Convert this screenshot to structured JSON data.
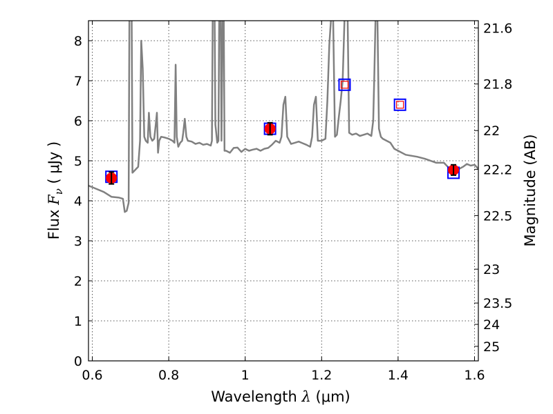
{
  "chart_data": {
    "type": "scatter",
    "xlabel_prefix": "Wavelength",
    "xlabel_symbol": "λ",
    "xlabel_unit": "(μm)",
    "ylabel_prefix": "Flux",
    "ylabel_symbol": "F",
    "ylabel_subscript": "ν",
    "ylabel_unit": "( μJy )",
    "y2label": "Magnitude (AB)",
    "xlim": [
      0.59,
      1.61
    ],
    "ylim": [
      0,
      8.5
    ],
    "grid": true,
    "x_ticks": [
      {
        "value": 0.6,
        "label": "0.6"
      },
      {
        "value": 0.8,
        "label": "0.8"
      },
      {
        "value": 1.0,
        "label": "1"
      },
      {
        "value": 1.2,
        "label": "1.2"
      },
      {
        "value": 1.4,
        "label": "1.4"
      },
      {
        "value": 1.6,
        "label": "1.6"
      }
    ],
    "y_ticks": [
      {
        "value": 0,
        "label": "0"
      },
      {
        "value": 1,
        "label": "1"
      },
      {
        "value": 2,
        "label": "2"
      },
      {
        "value": 3,
        "label": "3"
      },
      {
        "value": 4,
        "label": "4"
      },
      {
        "value": 5,
        "label": "5"
      },
      {
        "value": 6,
        "label": "6"
      },
      {
        "value": 7,
        "label": "7"
      },
      {
        "value": 8,
        "label": "8"
      }
    ],
    "y2_ticks": [
      {
        "value": 21.6,
        "label": "21.6"
      },
      {
        "value": 21.8,
        "label": "21.8"
      },
      {
        "value": 22.0,
        "label": "22"
      },
      {
        "value": 22.2,
        "label": "22.2"
      },
      {
        "value": 22.5,
        "label": "22.5"
      },
      {
        "value": 23.0,
        "label": "23"
      },
      {
        "value": 23.5,
        "label": "23.5"
      },
      {
        "value": 24.0,
        "label": "24"
      },
      {
        "value": 25.0,
        "label": "25"
      }
    ],
    "series": [
      {
        "kind": "line",
        "color": "#808080",
        "points": [
          [
            0.59,
            4.38
          ],
          [
            0.61,
            4.3
          ],
          [
            0.63,
            4.22
          ],
          [
            0.65,
            4.1
          ],
          [
            0.67,
            4.08
          ],
          [
            0.68,
            4.05
          ],
          [
            0.685,
            3.72
          ],
          [
            0.69,
            3.75
          ],
          [
            0.695,
            3.95
          ],
          [
            0.697,
            8.6
          ],
          [
            0.703,
            8.6
          ],
          [
            0.705,
            4.7
          ],
          [
            0.71,
            4.75
          ],
          [
            0.715,
            4.8
          ],
          [
            0.72,
            4.85
          ],
          [
            0.725,
            5.5
          ],
          [
            0.728,
            8.0
          ],
          [
            0.732,
            7.3
          ],
          [
            0.736,
            5.6
          ],
          [
            0.74,
            5.5
          ],
          [
            0.745,
            5.45
          ],
          [
            0.748,
            6.2
          ],
          [
            0.752,
            5.6
          ],
          [
            0.757,
            5.5
          ],
          [
            0.762,
            5.55
          ],
          [
            0.766,
            5.9
          ],
          [
            0.769,
            6.2
          ],
          [
            0.772,
            5.2
          ],
          [
            0.775,
            5.5
          ],
          [
            0.78,
            5.6
          ],
          [
            0.79,
            5.58
          ],
          [
            0.8,
            5.55
          ],
          [
            0.81,
            5.5
          ],
          [
            0.815,
            5.45
          ],
          [
            0.818,
            7.4
          ],
          [
            0.821,
            5.6
          ],
          [
            0.825,
            5.35
          ],
          [
            0.83,
            5.45
          ],
          [
            0.835,
            5.5
          ],
          [
            0.838,
            5.7
          ],
          [
            0.842,
            6.05
          ],
          [
            0.846,
            5.6
          ],
          [
            0.85,
            5.5
          ],
          [
            0.86,
            5.48
          ],
          [
            0.87,
            5.42
          ],
          [
            0.88,
            5.45
          ],
          [
            0.89,
            5.4
          ],
          [
            0.9,
            5.42
          ],
          [
            0.91,
            5.38
          ],
          [
            0.913,
            5.5
          ],
          [
            0.915,
            8.6
          ],
          [
            0.92,
            8.6
          ],
          [
            0.922,
            5.9
          ],
          [
            0.927,
            5.45
          ],
          [
            0.93,
            5.5
          ],
          [
            0.932,
            8.6
          ],
          [
            0.936,
            8.6
          ],
          [
            0.938,
            5.5
          ],
          [
            0.941,
            8.6
          ],
          [
            0.944,
            8.6
          ],
          [
            0.946,
            5.25
          ],
          [
            0.95,
            5.25
          ],
          [
            0.96,
            5.2
          ],
          [
            0.97,
            5.32
          ],
          [
            0.98,
            5.33
          ],
          [
            0.99,
            5.22
          ],
          [
            1.0,
            5.3
          ],
          [
            1.01,
            5.25
          ],
          [
            1.02,
            5.28
          ],
          [
            1.03,
            5.3
          ],
          [
            1.04,
            5.25
          ],
          [
            1.05,
            5.3
          ],
          [
            1.06,
            5.32
          ],
          [
            1.07,
            5.4
          ],
          [
            1.08,
            5.5
          ],
          [
            1.09,
            5.45
          ],
          [
            1.095,
            5.6
          ],
          [
            1.1,
            6.4
          ],
          [
            1.105,
            6.6
          ],
          [
            1.11,
            5.6
          ],
          [
            1.12,
            5.42
          ],
          [
            1.13,
            5.45
          ],
          [
            1.14,
            5.48
          ],
          [
            1.15,
            5.44
          ],
          [
            1.16,
            5.4
          ],
          [
            1.17,
            5.35
          ],
          [
            1.175,
            5.6
          ],
          [
            1.18,
            6.4
          ],
          [
            1.185,
            6.6
          ],
          [
            1.19,
            5.5
          ],
          [
            1.2,
            5.5
          ],
          [
            1.21,
            5.55
          ],
          [
            1.215,
            6.5
          ],
          [
            1.22,
            7.9
          ],
          [
            1.225,
            8.6
          ],
          [
            1.23,
            8.6
          ],
          [
            1.235,
            5.6
          ],
          [
            1.24,
            5.65
          ],
          [
            1.245,
            6.1
          ],
          [
            1.25,
            6.5
          ],
          [
            1.255,
            7.0
          ],
          [
            1.26,
            8.6
          ],
          [
            1.268,
            8.6
          ],
          [
            1.272,
            5.7
          ],
          [
            1.28,
            5.65
          ],
          [
            1.29,
            5.68
          ],
          [
            1.3,
            5.62
          ],
          [
            1.31,
            5.65
          ],
          [
            1.32,
            5.68
          ],
          [
            1.33,
            5.62
          ],
          [
            1.335,
            6.0
          ],
          [
            1.338,
            7.2
          ],
          [
            1.341,
            8.6
          ],
          [
            1.346,
            8.6
          ],
          [
            1.35,
            5.8
          ],
          [
            1.355,
            5.6
          ],
          [
            1.36,
            5.55
          ],
          [
            1.38,
            5.45
          ],
          [
            1.39,
            5.3
          ],
          [
            1.4,
            5.25
          ],
          [
            1.42,
            5.15
          ],
          [
            1.45,
            5.1
          ],
          [
            1.47,
            5.05
          ],
          [
            1.5,
            4.95
          ],
          [
            1.52,
            4.95
          ],
          [
            1.53,
            4.85
          ],
          [
            1.54,
            4.7
          ],
          [
            1.545,
            4.65
          ],
          [
            1.55,
            4.75
          ],
          [
            1.56,
            4.8
          ],
          [
            1.57,
            4.85
          ],
          [
            1.58,
            4.92
          ],
          [
            1.59,
            4.88
          ],
          [
            1.6,
            4.9
          ],
          [
            1.61,
            4.8
          ]
        ]
      },
      {
        "kind": "squares",
        "color": "#0000ff",
        "points": [
          [
            0.65,
            4.6
          ],
          [
            1.065,
            5.8
          ],
          [
            1.26,
            6.9
          ],
          [
            1.405,
            6.4
          ],
          [
            1.545,
            4.7
          ]
        ]
      },
      {
        "kind": "model-squares-inner",
        "color": "#ff0000",
        "points": [
          [
            1.26,
            6.9
          ],
          [
            1.405,
            6.4
          ]
        ]
      },
      {
        "kind": "points-with-errors",
        "color": "#ff0000",
        "points": [
          {
            "x": 0.65,
            "y": 4.57,
            "err": 0.15
          },
          {
            "x": 1.065,
            "y": 5.8,
            "err": 0.15
          },
          {
            "x": 1.545,
            "y": 4.77,
            "err": 0.13
          }
        ]
      }
    ]
  }
}
